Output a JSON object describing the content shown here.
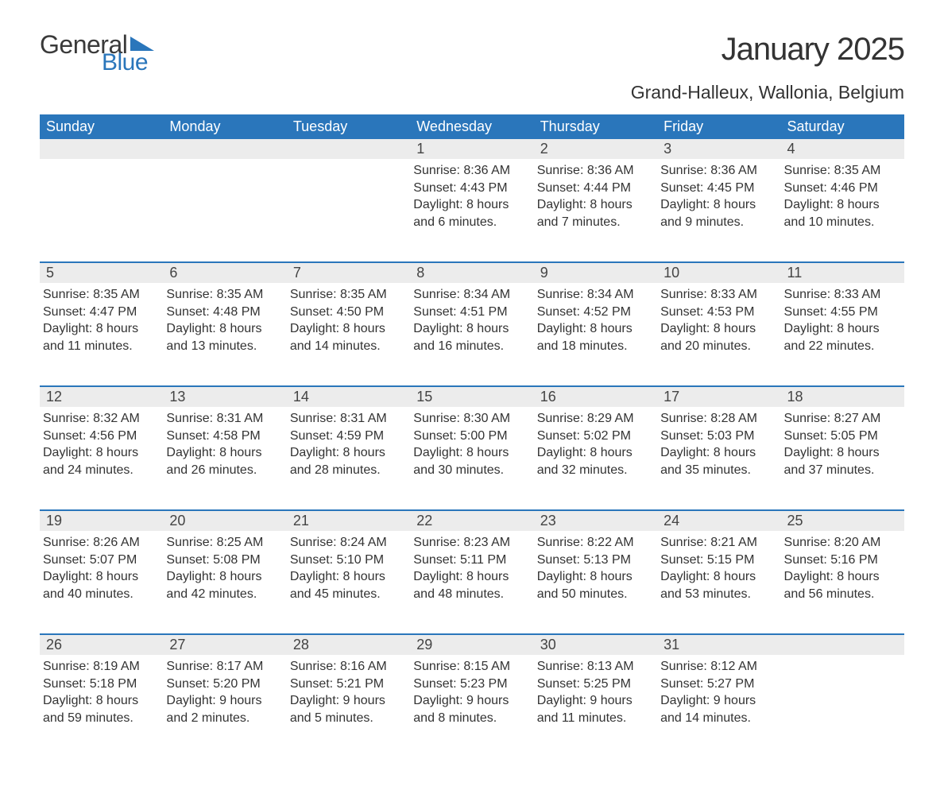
{
  "logo": {
    "word1": "General",
    "word2": "Blue",
    "word1_color": "#3a3a3a",
    "word2_color": "#2a76bb",
    "triangle_color": "#2a76bb"
  },
  "header": {
    "title": "January 2025",
    "location": "Grand-Halleux, Wallonia, Belgium",
    "title_fontsize": 40,
    "location_fontsize": 23,
    "text_color": "#333333"
  },
  "calendar": {
    "header_bg": "#2a76bb",
    "header_text_color": "#ffffff",
    "daynum_bg": "#ececec",
    "daynum_border_color": "#2a76bb",
    "body_text_color": "#333333",
    "day_headers": [
      "Sunday",
      "Monday",
      "Tuesday",
      "Wednesday",
      "Thursday",
      "Friday",
      "Saturday"
    ],
    "weeks": [
      {
        "nums": [
          "",
          "",
          "",
          "1",
          "2",
          "3",
          "4"
        ],
        "sunrise": [
          "",
          "",
          "",
          "8:36 AM",
          "8:36 AM",
          "8:36 AM",
          "8:35 AM"
        ],
        "sunset": [
          "",
          "",
          "",
          "4:43 PM",
          "4:44 PM",
          "4:45 PM",
          "4:46 PM"
        ],
        "day_l1": [
          "",
          "",
          "",
          "Daylight: 8 hours",
          "Daylight: 8 hours",
          "Daylight: 8 hours",
          "Daylight: 8 hours"
        ],
        "day_l2": [
          "",
          "",
          "",
          "and 6 minutes.",
          "and 7 minutes.",
          "and 9 minutes.",
          "and 10 minutes."
        ]
      },
      {
        "nums": [
          "5",
          "6",
          "7",
          "8",
          "9",
          "10",
          "11"
        ],
        "sunrise": [
          "8:35 AM",
          "8:35 AM",
          "8:35 AM",
          "8:34 AM",
          "8:34 AM",
          "8:33 AM",
          "8:33 AM"
        ],
        "sunset": [
          "4:47 PM",
          "4:48 PM",
          "4:50 PM",
          "4:51 PM",
          "4:52 PM",
          "4:53 PM",
          "4:55 PM"
        ],
        "day_l1": [
          "Daylight: 8 hours",
          "Daylight: 8 hours",
          "Daylight: 8 hours",
          "Daylight: 8 hours",
          "Daylight: 8 hours",
          "Daylight: 8 hours",
          "Daylight: 8 hours"
        ],
        "day_l2": [
          "and 11 minutes.",
          "and 13 minutes.",
          "and 14 minutes.",
          "and 16 minutes.",
          "and 18 minutes.",
          "and 20 minutes.",
          "and 22 minutes."
        ]
      },
      {
        "nums": [
          "12",
          "13",
          "14",
          "15",
          "16",
          "17",
          "18"
        ],
        "sunrise": [
          "8:32 AM",
          "8:31 AM",
          "8:31 AM",
          "8:30 AM",
          "8:29 AM",
          "8:28 AM",
          "8:27 AM"
        ],
        "sunset": [
          "4:56 PM",
          "4:58 PM",
          "4:59 PM",
          "5:00 PM",
          "5:02 PM",
          "5:03 PM",
          "5:05 PM"
        ],
        "day_l1": [
          "Daylight: 8 hours",
          "Daylight: 8 hours",
          "Daylight: 8 hours",
          "Daylight: 8 hours",
          "Daylight: 8 hours",
          "Daylight: 8 hours",
          "Daylight: 8 hours"
        ],
        "day_l2": [
          "and 24 minutes.",
          "and 26 minutes.",
          "and 28 minutes.",
          "and 30 minutes.",
          "and 32 minutes.",
          "and 35 minutes.",
          "and 37 minutes."
        ]
      },
      {
        "nums": [
          "19",
          "20",
          "21",
          "22",
          "23",
          "24",
          "25"
        ],
        "sunrise": [
          "8:26 AM",
          "8:25 AM",
          "8:24 AM",
          "8:23 AM",
          "8:22 AM",
          "8:21 AM",
          "8:20 AM"
        ],
        "sunset": [
          "5:07 PM",
          "5:08 PM",
          "5:10 PM",
          "5:11 PM",
          "5:13 PM",
          "5:15 PM",
          "5:16 PM"
        ],
        "day_l1": [
          "Daylight: 8 hours",
          "Daylight: 8 hours",
          "Daylight: 8 hours",
          "Daylight: 8 hours",
          "Daylight: 8 hours",
          "Daylight: 8 hours",
          "Daylight: 8 hours"
        ],
        "day_l2": [
          "and 40 minutes.",
          "and 42 minutes.",
          "and 45 minutes.",
          "and 48 minutes.",
          "and 50 minutes.",
          "and 53 minutes.",
          "and 56 minutes."
        ]
      },
      {
        "nums": [
          "26",
          "27",
          "28",
          "29",
          "30",
          "31",
          ""
        ],
        "sunrise": [
          "8:19 AM",
          "8:17 AM",
          "8:16 AM",
          "8:15 AM",
          "8:13 AM",
          "8:12 AM",
          ""
        ],
        "sunset": [
          "5:18 PM",
          "5:20 PM",
          "5:21 PM",
          "5:23 PM",
          "5:25 PM",
          "5:27 PM",
          ""
        ],
        "day_l1": [
          "Daylight: 8 hours",
          "Daylight: 9 hours",
          "Daylight: 9 hours",
          "Daylight: 9 hours",
          "Daylight: 9 hours",
          "Daylight: 9 hours",
          ""
        ],
        "day_l2": [
          "and 59 minutes.",
          "and 2 minutes.",
          "and 5 minutes.",
          "and 8 minutes.",
          "and 11 minutes.",
          "and 14 minutes.",
          ""
        ]
      }
    ],
    "labels": {
      "sunrise_prefix": "Sunrise: ",
      "sunset_prefix": "Sunset: "
    }
  }
}
